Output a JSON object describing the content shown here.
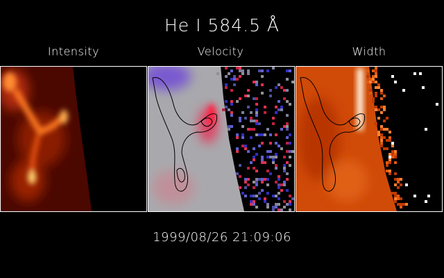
{
  "title": "He I 584.5 Å",
  "panels": [
    {
      "label": "Intensity"
    },
    {
      "label": "Velocity"
    },
    {
      "label": "Width"
    }
  ],
  "timestamp": "1999/08/26 21:09:06"
}
